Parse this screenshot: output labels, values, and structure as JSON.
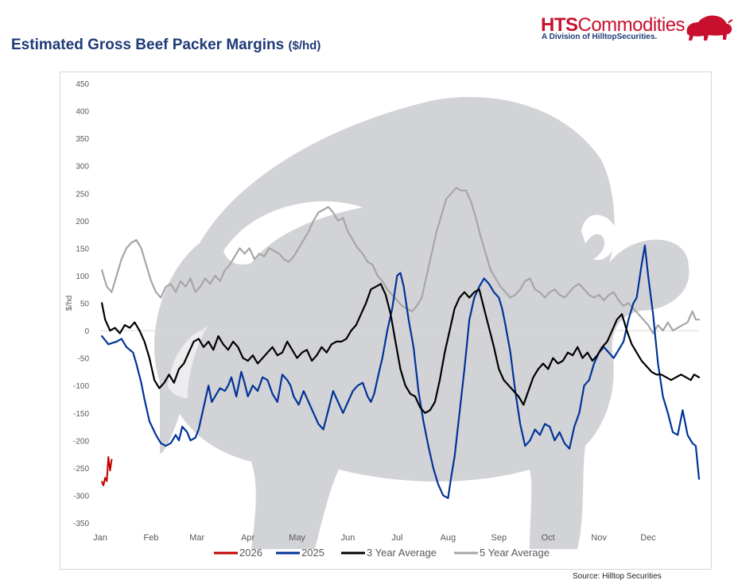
{
  "header": {
    "title": "Estimated Gross Beef Packer Margins",
    "title_unit": "($/hd)"
  },
  "logo": {
    "brand_bold": "HTS",
    "brand_rest": "Commodities",
    "tagline": "A Division of HilltopSecurities."
  },
  "source": "Source: Hilltop Securities",
  "colors": {
    "title": "#1f3a78",
    "brand": "#c8102e",
    "s2026": "#c00000",
    "s2025": "#003399",
    "s3yr": "#000000",
    "s5yr": "#a6a6a6",
    "watermark": "#d2d3d6"
  },
  "chart_data": {
    "type": "line",
    "title": "Estimated Gross Beef Packer Margins ($/hd)",
    "ylabel": "$/hd",
    "xlabel": "",
    "xlim": [
      0,
      365
    ],
    "ylim": [
      -350,
      450
    ],
    "yticks": [
      450,
      400,
      350,
      300,
      250,
      200,
      150,
      100,
      50,
      0,
      -50,
      -100,
      -150,
      -200,
      -250,
      -300,
      -350
    ],
    "ytick_labels": [
      "450",
      "400",
      "350",
      "300",
      "250",
      "200",
      "150",
      "100",
      "50",
      "0",
      "-50",
      "-100",
      "-150",
      "-200",
      "-250",
      "-300",
      "-350"
    ],
    "xticks": [
      {
        "label": "Jan",
        "day": 0
      },
      {
        "label": "Feb",
        "day": 31
      },
      {
        "label": "Mar",
        "day": 59
      },
      {
        "label": "Apr",
        "day": 90
      },
      {
        "label": "May",
        "day": 120
      },
      {
        "label": "Jun",
        "day": 151
      },
      {
        "label": "Jul",
        "day": 181
      },
      {
        "label": "Aug",
        "day": 212
      },
      {
        "label": "Sep",
        "day": 243
      },
      {
        "label": "Oct",
        "day": 273
      },
      {
        "label": "Nov",
        "day": 304
      },
      {
        "label": "Dec",
        "day": 334
      }
    ],
    "legend_position": "bottom",
    "series": [
      {
        "name": "2026",
        "color": "#c00000",
        "width": 2,
        "x": [
          1,
          2,
          3,
          4,
          5,
          6,
          7
        ],
        "y": [
          -275,
          -282,
          -268,
          -274,
          -230,
          -255,
          -235
        ]
      },
      {
        "name": "2025",
        "color": "#003399",
        "width": 2.2,
        "x": [
          1,
          5,
          10,
          13,
          16,
          20,
          22,
          25,
          27,
          30,
          34,
          37,
          40,
          43,
          46,
          48,
          50,
          53,
          55,
          58,
          60,
          63,
          66,
          68,
          70,
          73,
          76,
          78,
          80,
          83,
          86,
          88,
          90,
          93,
          96,
          99,
          102,
          105,
          108,
          111,
          114,
          116,
          118,
          121,
          124,
          127,
          130,
          133,
          136,
          139,
          142,
          145,
          148,
          151,
          154,
          157,
          160,
          163,
          165,
          167,
          170,
          172,
          175,
          178,
          181,
          183,
          185,
          188,
          191,
          194,
          197,
          200,
          203,
          206,
          209,
          212,
          214,
          216,
          219,
          222,
          225,
          228,
          231,
          234,
          237,
          240,
          243,
          245,
          247,
          250,
          253,
          256,
          259,
          262,
          265,
          268,
          271,
          274,
          277,
          280,
          283,
          286,
          289,
          292,
          295,
          298,
          301,
          304,
          307,
          310,
          313,
          316,
          319,
          322,
          325,
          327,
          330,
          332,
          334,
          337,
          340,
          343,
          346,
          349,
          352,
          355,
          358,
          361,
          363,
          365
        ],
        "y": [
          -10,
          -25,
          -20,
          -15,
          -30,
          -40,
          -60,
          -95,
          -125,
          -165,
          -190,
          -205,
          -210,
          -205,
          -190,
          -200,
          -175,
          -185,
          -200,
          -195,
          -180,
          -140,
          -100,
          -130,
          -120,
          -105,
          -110,
          -100,
          -85,
          -120,
          -75,
          -95,
          -120,
          -100,
          -110,
          -85,
          -90,
          -115,
          -130,
          -80,
          -90,
          -100,
          -120,
          -135,
          -110,
          -130,
          -150,
          -170,
          -180,
          -145,
          -110,
          -130,
          -150,
          -130,
          -110,
          -100,
          -95,
          -120,
          -130,
          -115,
          -75,
          -50,
          0,
          40,
          100,
          105,
          80,
          20,
          -30,
          -110,
          -165,
          -210,
          -250,
          -280,
          -300,
          -305,
          -265,
          -230,
          -150,
          -70,
          20,
          60,
          80,
          95,
          85,
          70,
          60,
          40,
          10,
          -40,
          -110,
          -170,
          -210,
          -200,
          -180,
          -190,
          -170,
          -175,
          -200,
          -185,
          -205,
          -215,
          -175,
          -150,
          -100,
          -90,
          -60,
          -40,
          -30,
          -40,
          -50,
          -35,
          -20,
          20,
          50,
          60,
          120,
          155,
          100,
          30,
          -60,
          -120,
          -150,
          -185,
          -190,
          -145,
          -190,
          -205,
          -210,
          -270
        ]
      },
      {
        "name": "3 Year Average",
        "color": "#000000",
        "width": 2.2,
        "x": [
          1,
          3,
          6,
          9,
          12,
          15,
          18,
          21,
          24,
          27,
          30,
          33,
          36,
          39,
          42,
          45,
          48,
          51,
          54,
          57,
          60,
          63,
          66,
          69,
          72,
          75,
          78,
          81,
          84,
          87,
          90,
          93,
          96,
          99,
          102,
          105,
          108,
          111,
          114,
          117,
          120,
          123,
          126,
          129,
          132,
          135,
          138,
          141,
          144,
          147,
          150,
          153,
          156,
          159,
          162,
          165,
          168,
          171,
          174,
          177,
          180,
          183,
          186,
          189,
          192,
          195,
          198,
          201,
          204,
          207,
          210,
          213,
          216,
          219,
          222,
          225,
          228,
          231,
          234,
          237,
          240,
          243,
          246,
          249,
          252,
          255,
          258,
          261,
          264,
          267,
          270,
          273,
          276,
          279,
          282,
          285,
          288,
          291,
          294,
          297,
          300,
          303,
          306,
          309,
          312,
          315,
          318,
          321,
          324,
          327,
          330,
          333,
          336,
          339,
          342,
          345,
          348,
          351,
          354,
          357,
          360,
          362,
          365
        ],
        "y": [
          50,
          20,
          0,
          5,
          -5,
          10,
          5,
          15,
          0,
          -20,
          -50,
          -90,
          -105,
          -95,
          -80,
          -95,
          -70,
          -60,
          -40,
          -20,
          -15,
          -30,
          -20,
          -35,
          -10,
          -25,
          -35,
          -20,
          -30,
          -50,
          -55,
          -45,
          -60,
          -50,
          -40,
          -30,
          -45,
          -40,
          -20,
          -35,
          -50,
          -40,
          -35,
          -55,
          -45,
          -30,
          -40,
          -25,
          -20,
          -20,
          -15,
          0,
          10,
          30,
          50,
          75,
          80,
          85,
          65,
          30,
          -20,
          -70,
          -100,
          -115,
          -120,
          -140,
          -150,
          -145,
          -130,
          -90,
          -40,
          0,
          40,
          60,
          70,
          60,
          70,
          75,
          40,
          5,
          -30,
          -70,
          -90,
          -100,
          -110,
          -120,
          -135,
          -110,
          -85,
          -70,
          -60,
          -70,
          -50,
          -60,
          -55,
          -40,
          -45,
          -30,
          -50,
          -40,
          -55,
          -45,
          -30,
          -20,
          0,
          20,
          30,
          0,
          -25,
          -40,
          -55,
          -65,
          -75,
          -80,
          -80,
          -85,
          -90,
          -85,
          -80,
          -85,
          -90,
          -80,
          -85
        ]
      },
      {
        "name": "5 Year Average",
        "color": "#a6a6a6",
        "width": 2.2,
        "x": [
          1,
          4,
          7,
          10,
          13,
          16,
          19,
          22,
          25,
          28,
          31,
          34,
          37,
          40,
          43,
          46,
          49,
          52,
          55,
          58,
          61,
          64,
          67,
          70,
          73,
          76,
          79,
          82,
          85,
          88,
          91,
          94,
          97,
          100,
          103,
          106,
          109,
          112,
          115,
          118,
          121,
          124,
          127,
          130,
          133,
          136,
          139,
          142,
          145,
          148,
          151,
          154,
          157,
          160,
          163,
          166,
          169,
          172,
          175,
          178,
          181,
          184,
          187,
          190,
          193,
          196,
          199,
          202,
          205,
          208,
          211,
          214,
          217,
          220,
          223,
          226,
          229,
          232,
          235,
          238,
          241,
          244,
          247,
          250,
          253,
          256,
          259,
          262,
          265,
          268,
          271,
          274,
          277,
          280,
          283,
          286,
          289,
          292,
          295,
          298,
          301,
          304,
          307,
          310,
          313,
          316,
          319,
          322,
          325,
          328,
          331,
          334,
          337,
          340,
          343,
          346,
          349,
          352,
          355,
          358,
          361,
          363,
          365
        ],
        "y": [
          110,
          80,
          70,
          100,
          130,
          150,
          160,
          165,
          150,
          120,
          90,
          70,
          60,
          80,
          85,
          70,
          90,
          80,
          95,
          70,
          80,
          95,
          85,
          100,
          90,
          110,
          120,
          135,
          150,
          140,
          150,
          130,
          140,
          135,
          150,
          145,
          140,
          130,
          125,
          135,
          150,
          165,
          180,
          200,
          215,
          220,
          225,
          215,
          200,
          205,
          180,
          165,
          150,
          140,
          125,
          120,
          100,
          90,
          75,
          65,
          55,
          45,
          40,
          35,
          45,
          60,
          100,
          140,
          180,
          210,
          240,
          250,
          260,
          255,
          255,
          235,
          205,
          170,
          140,
          110,
          95,
          80,
          70,
          60,
          65,
          75,
          90,
          95,
          75,
          70,
          60,
          70,
          75,
          65,
          60,
          70,
          80,
          85,
          75,
          65,
          60,
          65,
          55,
          65,
          70,
          55,
          45,
          50,
          40,
          30,
          20,
          10,
          -5,
          10,
          0,
          15,
          0,
          5,
          10,
          15,
          35,
          20,
          20
        ]
      }
    ]
  }
}
